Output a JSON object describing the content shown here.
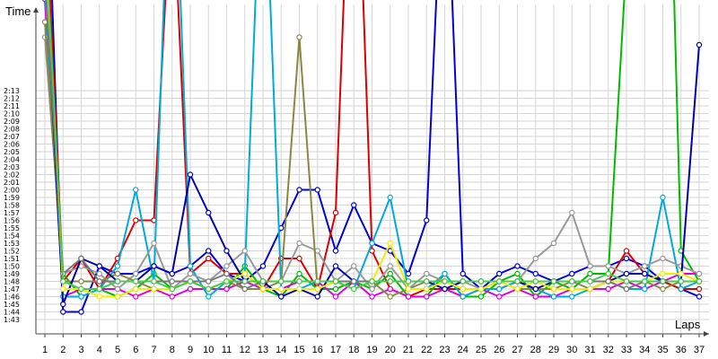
{
  "chart_data": {
    "type": "line",
    "xlabel": "Laps",
    "ylabel": "Time",
    "grid": true,
    "legend": "none",
    "y_range_seconds": [
      102,
      195
    ],
    "x_range": [
      1,
      37
    ],
    "x_ticks": [
      "1",
      "2",
      "3",
      "4",
      "5",
      "6",
      "7",
      "8",
      "9",
      "10",
      "11",
      "12",
      "13",
      "14",
      "15",
      "16",
      "17",
      "18",
      "19",
      "20",
      "21",
      "22",
      "23",
      "24",
      "25",
      "26",
      "27",
      "28",
      "29",
      "30",
      "31",
      "32",
      "33",
      "34",
      "35",
      "36",
      "37"
    ],
    "y_ticks": [
      "1:43",
      "1:44",
      "1:45",
      "1:46",
      "1:47",
      "1:48",
      "1:49",
      "1:50",
      "1:51",
      "1:52",
      "1:53",
      "1:54",
      "1:55",
      "1:56",
      "1:57",
      "1:58",
      "1:59",
      "2:00",
      "2:01",
      "2:02",
      "2:03",
      "2:04",
      "2:05",
      "2:06",
      "2:07",
      "2:08",
      "2:09",
      "2:10",
      "2:11",
      "2:12",
      "2:13"
    ],
    "series": [
      {
        "color": "#0000dd",
        "values": [
          172,
          104,
          104,
          110,
          109,
          109,
          110,
          109,
          110,
          112,
          109,
          108,
          110,
          115,
          120,
          120,
          112,
          118,
          113,
          112,
          109,
          116,
          170,
          109,
          107,
          109,
          110,
          109,
          108,
          109,
          110,
          110,
          111,
          110,
          108,
          107,
          106
        ]
      },
      {
        "color": "#dd0000",
        "values": [
          160,
          108,
          111,
          107,
          111,
          116,
          116,
          162,
          109,
          111,
          109,
          109,
          107,
          111,
          111,
          107,
          117,
          180,
          112,
          107,
          106,
          107,
          107,
          107,
          107,
          107,
          108,
          107,
          107,
          107,
          107,
          108,
          112,
          109,
          108,
          107,
          107
        ]
      },
      {
        "color": "#00bb00",
        "values": [
          145,
          109,
          106,
          107,
          106,
          107,
          109,
          107,
          108,
          107,
          107,
          110,
          107,
          106,
          109,
          107,
          107,
          108,
          107,
          109,
          106,
          106,
          109,
          106,
          106,
          108,
          109,
          106,
          108,
          107,
          109,
          109,
          150,
          150,
          200,
          112,
          108
        ]
      },
      {
        "color": "#dd00dd",
        "values": [
          145,
          106,
          107,
          107,
          107,
          106,
          107,
          106,
          107,
          107,
          107,
          108,
          107,
          107,
          108,
          108,
          106,
          108,
          106,
          107,
          106,
          106,
          107,
          106,
          107,
          106,
          107,
          106,
          106,
          107,
          107,
          107,
          108,
          107,
          108,
          109,
          109
        ]
      },
      {
        "color": "#00aadd",
        "values": [
          147,
          106,
          106,
          107,
          110,
          120,
          108,
          175,
          110,
          106,
          108,
          109,
          170,
          107,
          107,
          108,
          108,
          107,
          113,
          119,
          107,
          107,
          109,
          106,
          107,
          107,
          108,
          107,
          106,
          106,
          107,
          108,
          107,
          107,
          119,
          107,
          108
        ]
      },
      {
        "color": "#999999",
        "values": [
          140,
          109,
          110,
          109,
          107,
          109,
          113,
          107,
          109,
          108,
          110,
          112,
          108,
          108,
          113,
          112,
          108,
          110,
          107,
          110,
          107,
          109,
          108,
          108,
          107,
          108,
          108,
          111,
          113,
          117,
          110,
          110,
          109,
          110,
          111,
          110,
          109
        ]
      },
      {
        "color": "#888844",
        "values": [
          142,
          108,
          108,
          108,
          109,
          108,
          107,
          107,
          108,
          107,
          108,
          107,
          107,
          108,
          140,
          107,
          108,
          108,
          108,
          106,
          107,
          108,
          108,
          107,
          107,
          108,
          107,
          107,
          107,
          108,
          107,
          108,
          108,
          108,
          107,
          108,
          108
        ]
      },
      {
        "color": "#0000aa",
        "values": [
          150,
          105,
          111,
          110,
          108,
          108,
          110,
          109,
          122,
          117,
          112,
          108,
          108,
          106,
          107,
          106,
          110,
          108,
          108,
          108,
          108,
          108,
          107,
          108,
          108,
          108,
          108,
          107,
          108,
          108,
          108,
          108,
          109,
          109,
          108,
          108,
          139
        ]
      },
      {
        "color": "#eeee00",
        "values": [
          152,
          107,
          107,
          106,
          106,
          107,
          107,
          107,
          108,
          107,
          108,
          109,
          107,
          107,
          107,
          107,
          108,
          107,
          108,
          113,
          107,
          107,
          108,
          107,
          107,
          108,
          107,
          108,
          107,
          107,
          107,
          108,
          108,
          108,
          109,
          109,
          108
        ]
      },
      {
        "color": "#777777",
        "values": [
          148,
          109,
          111,
          108,
          108,
          108,
          108,
          108,
          108,
          108,
          109,
          107,
          108,
          108,
          108,
          108,
          108,
          108,
          108,
          108,
          108,
          108,
          108,
          108,
          108,
          108,
          108,
          108,
          108,
          108,
          108,
          108,
          107,
          108,
          108,
          108,
          108
        ]
      },
      {
        "color": "#44cc44",
        "values": [
          155,
          108,
          107,
          107,
          108,
          108,
          108,
          107,
          108,
          107,
          108,
          108,
          108,
          108,
          108,
          108,
          108,
          107,
          108,
          108,
          108,
          108,
          108,
          108,
          108,
          108,
          108,
          108,
          108,
          108,
          108,
          109,
          108,
          108,
          108,
          108,
          108
        ]
      }
    ]
  }
}
